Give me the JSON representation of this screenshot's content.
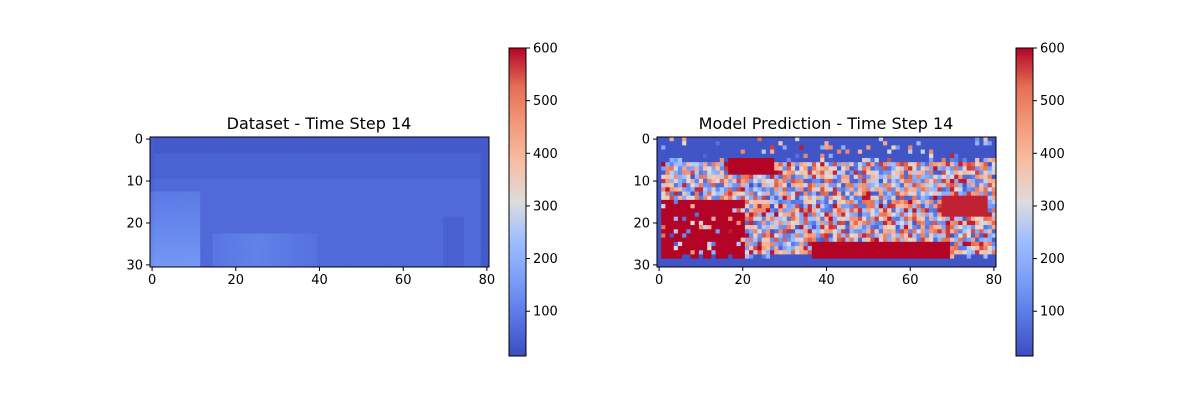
{
  "chart_data": [
    {
      "type": "heatmap",
      "title": "Dataset - Time Step 14",
      "rows": 31,
      "cols": 81,
      "xticks": [
        0,
        20,
        40,
        60,
        80
      ],
      "yticks": [
        0,
        10,
        20,
        30
      ],
      "colormap": "coolwarm",
      "vmin": 15,
      "vmax": 600,
      "colorbar_ticks": [
        100,
        200,
        300,
        400,
        500,
        600
      ],
      "field_description_values": {
        "base": 55,
        "upper_band_value": 40,
        "right_block_value": 70
      }
    },
    {
      "type": "heatmap",
      "title": "Model Prediction - Time Step 14",
      "rows": 31,
      "cols": 81,
      "xticks": [
        0,
        20,
        40,
        60,
        80
      ],
      "yticks": [
        0,
        10,
        20,
        30
      ],
      "colormap": "coolwarm",
      "vmin": 15,
      "vmax": 600,
      "colorbar_ticks": [
        100,
        200,
        300,
        400,
        500,
        600
      ],
      "field_description_values": {
        "low": 30,
        "high": 600
      }
    }
  ],
  "colors": {
    "cmap_low": "#3b4cc0",
    "cmap_mid": "#dddddd",
    "cmap_high": "#b40426"
  }
}
